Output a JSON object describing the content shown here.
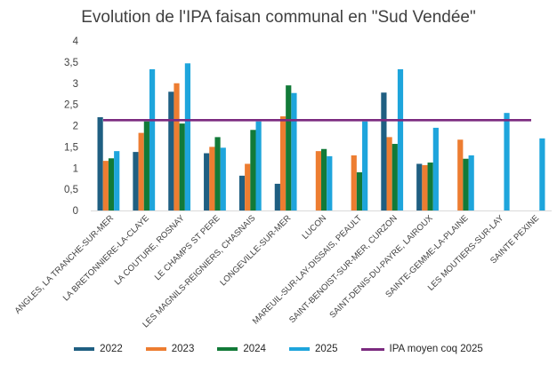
{
  "chart_data": {
    "type": "bar",
    "title": "Evolution de l'IPA faisan communal en \"Sud Vendée\"",
    "categories": [
      "ANGLES, LA TRANCHE-SUR-MER",
      "LA BRETONNIERE-LA-CLAYE",
      "LA COUTURE, ROSNAY",
      "LE CHAMPS ST PERE",
      "LES MAGNILS-REIGNIERS, CHASNAIS",
      "LONGEVILLE-SUR-MER",
      "LUCON",
      "MAREUIL-SUR-LAY-DISSAIS, PEAULT",
      "SAINT-BENOIST-SUR-MER, CURZON",
      "SAINT-DENIS-DU-PAYRE, LAIROUX",
      "SAINTE-GEMME-LA-PLAINE",
      "LES MOUTIERS-SUR-LAY",
      "SAINTE PEXINE"
    ],
    "series": [
      {
        "name": "2022",
        "color": "#1f5f82",
        "values": [
          2.2,
          1.38,
          2.8,
          1.35,
          0.82,
          0.63,
          null,
          null,
          2.78,
          1.1,
          null,
          null,
          null
        ]
      },
      {
        "name": "2023",
        "color": "#ed7d31",
        "values": [
          1.17,
          1.83,
          3.0,
          1.5,
          1.1,
          2.22,
          1.4,
          1.3,
          1.73,
          1.07,
          1.67,
          null,
          null
        ]
      },
      {
        "name": "2024",
        "color": "#127a38",
        "values": [
          1.23,
          2.1,
          2.05,
          1.73,
          1.9,
          2.95,
          1.45,
          0.9,
          1.57,
          1.13,
          1.22,
          null,
          null
        ]
      },
      {
        "name": "2025",
        "color": "#1ea5dc",
        "values": [
          1.4,
          3.33,
          3.47,
          1.48,
          2.1,
          2.77,
          1.28,
          2.1,
          3.33,
          1.95,
          1.3,
          2.3,
          1.7
        ]
      }
    ],
    "reference_line": {
      "name": "IPA moyen coq 2025",
      "value": 2.13,
      "color": "#7b2a7f"
    },
    "ylim": [
      0,
      4
    ],
    "yticks": [
      "0",
      "0,5",
      "1",
      "1,5",
      "2",
      "2,5",
      "3",
      "3,5",
      "4"
    ],
    "xlabel": "",
    "ylabel": "",
    "grid": false,
    "legend": "bottom"
  }
}
